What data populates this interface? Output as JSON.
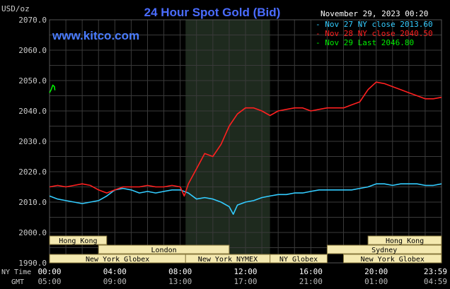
{
  "chart_data": {
    "type": "line",
    "title": "24 Hour Spot Gold (Bid)",
    "timestamp": "November 29, 2023 00:20",
    "watermark": "www.kitco.com",
    "y_unit_label": "USD/oz",
    "ylim": [
      1990,
      2070
    ],
    "y_ticks": [
      "2070.0",
      "2060.0",
      "2050.0",
      "2040.0",
      "2030.0",
      "2020.0",
      "2010.0",
      "2000.0",
      "1990.0"
    ],
    "y_tick_values": [
      2070,
      2060,
      2050,
      2040,
      2030,
      2020,
      2010,
      2000,
      1990
    ],
    "x_axis": {
      "row1_label": "NY Time",
      "row2_label": "GMT",
      "ticks_ny": [
        "00:00",
        "04:00",
        "08:00",
        "12:00",
        "16:00",
        "20:00",
        "23:59"
      ],
      "ticks_gmt": [
        "05:00",
        "09:00",
        "13:00",
        "17:00",
        "21:00",
        "01:00",
        "04:59"
      ],
      "tick_hours": [
        0,
        4,
        8,
        12,
        16,
        20,
        24
      ]
    },
    "shaded_session": {
      "start_hour": 8.33,
      "end_hour": 13.5,
      "color": "#1e2a1e"
    },
    "legend_placement": "top-right",
    "series": [
      {
        "name": "Nov 27 NY close 2013.60",
        "color": "#33ccff",
        "x_hours": [
          0,
          0.5,
          1,
          1.5,
          2,
          2.5,
          3,
          3.5,
          4,
          4.5,
          5,
          5.5,
          6,
          6.5,
          7,
          7.5,
          8,
          8.5,
          9,
          9.5,
          10,
          10.5,
          11,
          11.25,
          11.5,
          12,
          12.5,
          13,
          13.5,
          14,
          14.5,
          15,
          15.5,
          16,
          16.5,
          17,
          17.5,
          18,
          18.5,
          19,
          19.5,
          20,
          20.5,
          21,
          21.5,
          22,
          22.5,
          23,
          23.5,
          24
        ],
        "values": [
          2012,
          2011,
          2010.5,
          2010,
          2009.5,
          2010,
          2010.5,
          2012,
          2014,
          2014.5,
          2014,
          2013,
          2013.5,
          2013,
          2013.5,
          2014,
          2014,
          2013,
          2011,
          2011.5,
          2011,
          2010,
          2008.5,
          2006,
          2009,
          2010,
          2010.5,
          2011.5,
          2012,
          2012.5,
          2012.5,
          2013,
          2013,
          2013.5,
          2014,
          2014,
          2014,
          2014,
          2014,
          2014.5,
          2015,
          2016,
          2016,
          2015.5,
          2016,
          2016,
          2016,
          2015.5,
          2015.5,
          2016
        ]
      },
      {
        "name": "Nov 28 NY close 2040.50",
        "color": "#ff2020",
        "x_hours": [
          0,
          0.5,
          1,
          1.5,
          2,
          2.5,
          3,
          3.5,
          4,
          4.5,
          5,
          5.5,
          6,
          6.5,
          7,
          7.5,
          8,
          8.25,
          8.5,
          9,
          9.5,
          10,
          10.5,
          11,
          11.5,
          12,
          12.5,
          13,
          13.5,
          14,
          14.5,
          15,
          15.5,
          16,
          16.5,
          17,
          17.5,
          18,
          18.5,
          19,
          19.5,
          20,
          20.5,
          21,
          21.5,
          22,
          22.5,
          23,
          23.5,
          24
        ],
        "values": [
          2015,
          2015.5,
          2015,
          2015.5,
          2016,
          2015.5,
          2014,
          2013,
          2014,
          2015,
          2015,
          2015,
          2015.5,
          2015,
          2015,
          2015.5,
          2015,
          2012,
          2016,
          2021,
          2026,
          2025,
          2029,
          2035,
          2039,
          2041,
          2041,
          2040,
          2038.5,
          2040,
          2040.5,
          2041,
          2041,
          2040,
          2040.5,
          2041,
          2041,
          2041,
          2042,
          2043,
          2047,
          2049.5,
          2049,
          2048,
          2047,
          2046,
          2045,
          2044,
          2044,
          2044.5
        ]
      },
      {
        "name": "Nov 29 Last 2046.80",
        "color": "#00ee00",
        "x_hours": [
          0,
          0.1,
          0.2,
          0.3,
          0.33
        ],
        "values": [
          2046,
          2047,
          2048.5,
          2048,
          2046.8
        ]
      }
    ],
    "market_sessions": [
      {
        "name": "Hong Kong",
        "start_hour": 0,
        "end_hour": 3.5,
        "row": 0
      },
      {
        "name": "London",
        "start_hour": 3,
        "end_hour": 11,
        "row": 1
      },
      {
        "name": "New York Globex",
        "start_hour": 0,
        "end_hour": 8.33,
        "row": 2
      },
      {
        "name": "New York NYMEX",
        "start_hour": 8.33,
        "end_hour": 13.5,
        "row": 2
      },
      {
        "name": "NY Globex",
        "start_hour": 13.5,
        "end_hour": 17,
        "row": 2
      },
      {
        "name": "Hong Kong",
        "start_hour": 19.5,
        "end_hour": 24,
        "row": 0
      },
      {
        "name": "Sydney",
        "start_hour": 17,
        "end_hour": 24,
        "row": 1
      },
      {
        "name": "New York Globex",
        "start_hour": 18,
        "end_hour": 24,
        "row": 2
      }
    ]
  },
  "colors": {
    "background": "#000000",
    "grid": "#3a3a3a",
    "title": "#4a6cff",
    "watermark": "#4a7cff",
    "text": "#cccccc",
    "session_fill": "#f4e9b0",
    "session_border": "#8a7a40"
  }
}
